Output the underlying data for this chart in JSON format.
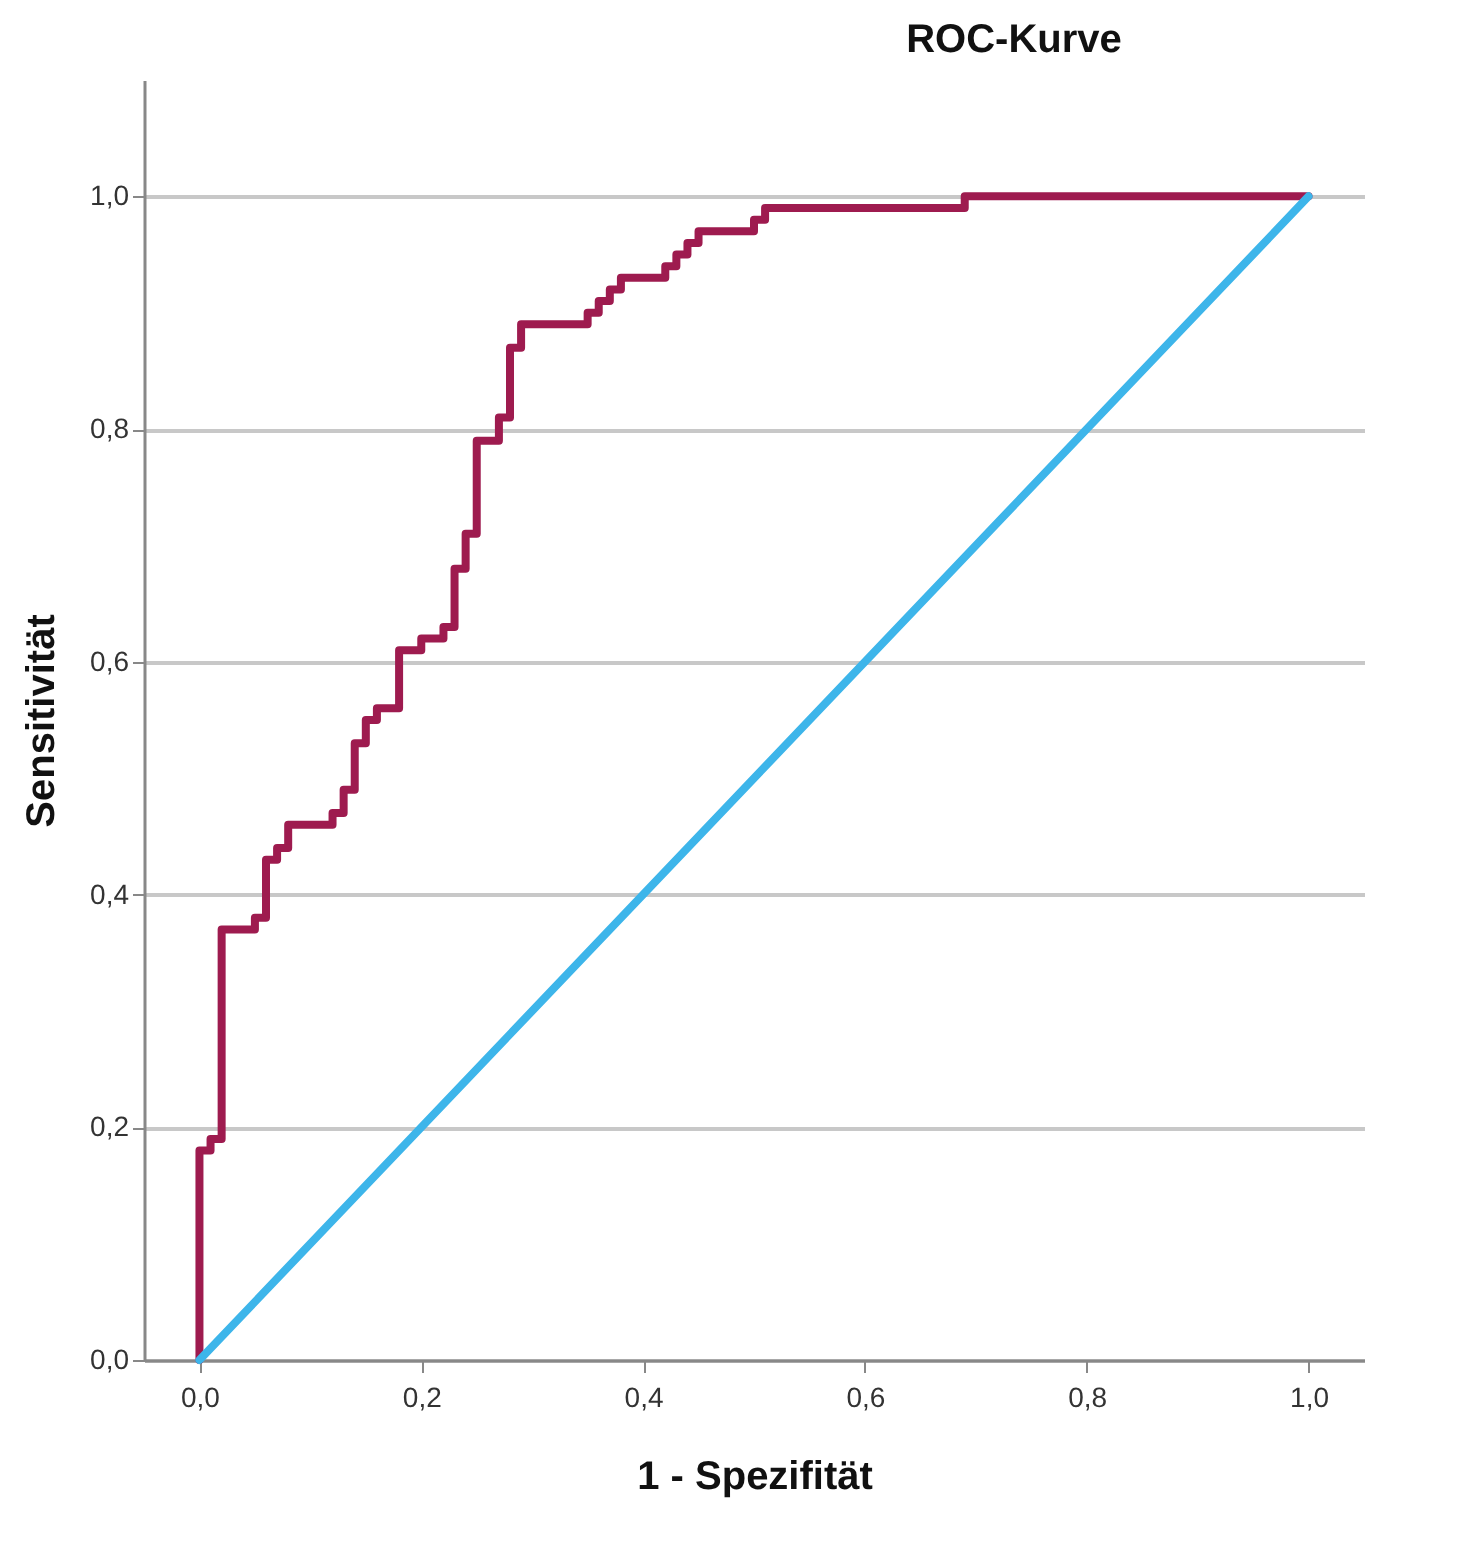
{
  "chart_data": {
    "type": "line",
    "title": "ROC-Kurve",
    "xlabel": "1 - Spezifität",
    "ylabel": "Sensitivität",
    "xlim": [
      -0.05,
      1.05
    ],
    "ylim": [
      0,
      1.1
    ],
    "xticks": [
      {
        "value": 0,
        "label": "0,0"
      },
      {
        "value": 0.2,
        "label": "0,2"
      },
      {
        "value": 0.4,
        "label": "0,4"
      },
      {
        "value": 0.6,
        "label": "0,6"
      },
      {
        "value": 0.8,
        "label": "0,8"
      },
      {
        "value": 1,
        "label": "1,0"
      }
    ],
    "yticks": [
      {
        "value": 0,
        "label": "0,0"
      },
      {
        "value": 0.2,
        "label": "0,2"
      },
      {
        "value": 0.4,
        "label": "0,4"
      },
      {
        "value": 0.6,
        "label": "0,6"
      },
      {
        "value": 0.8,
        "label": "0,8"
      },
      {
        "value": 1,
        "label": "1,0"
      }
    ],
    "grid": "y",
    "series": [
      {
        "color": "#9e1b4f",
        "x": [
          0,
          0,
          0.01,
          0.01,
          0.02,
          0.02,
          0.05,
          0.05,
          0.06,
          0.06,
          0.07,
          0.07,
          0.08,
          0.08,
          0.12,
          0.12,
          0.13,
          0.13,
          0.14,
          0.14,
          0.15,
          0.15,
          0.16,
          0.16,
          0.18,
          0.18,
          0.2,
          0.2,
          0.22,
          0.22,
          0.23,
          0.23,
          0.24,
          0.24,
          0.25,
          0.25,
          0.27,
          0.27,
          0.28,
          0.28,
          0.29,
          0.29,
          0.35,
          0.35,
          0.36,
          0.36,
          0.37,
          0.37,
          0.38,
          0.38,
          0.42,
          0.42,
          0.43,
          0.43,
          0.44,
          0.44,
          0.45,
          0.45,
          0.5,
          0.5,
          0.51,
          0.51,
          0.69,
          0.69,
          1
        ],
        "values": [
          0,
          0.18,
          0.18,
          0.19,
          0.19,
          0.37,
          0.37,
          0.38,
          0.38,
          0.43,
          0.43,
          0.44,
          0.44,
          0.46,
          0.46,
          0.47,
          0.47,
          0.49,
          0.49,
          0.53,
          0.53,
          0.55,
          0.55,
          0.56,
          0.56,
          0.61,
          0.61,
          0.62,
          0.62,
          0.63,
          0.63,
          0.68,
          0.68,
          0.71,
          0.71,
          0.79,
          0.79,
          0.81,
          0.81,
          0.87,
          0.87,
          0.89,
          0.89,
          0.9,
          0.9,
          0.91,
          0.91,
          0.92,
          0.92,
          0.93,
          0.93,
          0.94,
          0.94,
          0.95,
          0.95,
          0.96,
          0.96,
          0.97,
          0.97,
          0.98,
          0.98,
          0.99,
          0.99,
          1,
          1
        ]
      },
      {
        "color": "#3db5ea",
        "x": [
          0,
          1
        ],
        "values": [
          0,
          1
        ]
      }
    ]
  }
}
